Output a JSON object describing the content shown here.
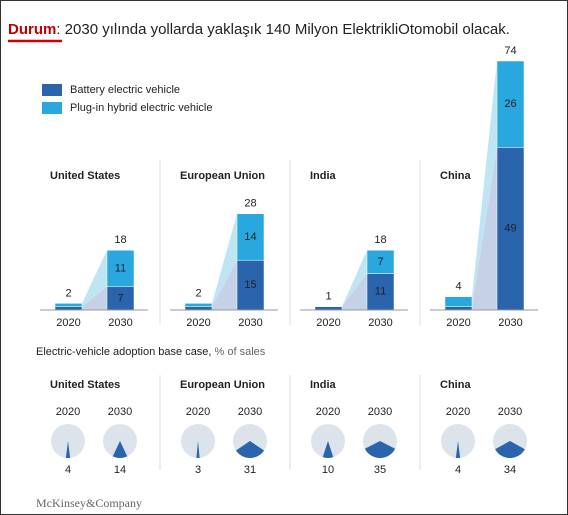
{
  "header": {
    "label": "Durum",
    "text": ": 2030 yılında yollarda yaklaşık 140 Milyon ElektrikliOtomobil olacak."
  },
  "chart_data": {
    "type": "bar",
    "stacked": true,
    "legend": [
      {
        "name": "Battery electric vehicle",
        "color": "#2a64ad"
      },
      {
        "name": "Plug-in hybrid electric vehicle",
        "color": "#29a8df"
      }
    ],
    "panels": [
      {
        "title": "United States",
        "categories": [
          "2020",
          "2030"
        ],
        "series": [
          {
            "values": [
              1,
              7
            ]
          },
          {
            "values": [
              1,
              11
            ]
          }
        ],
        "totals": [
          2,
          18
        ]
      },
      {
        "title": "European Union",
        "categories": [
          "2020",
          "2030"
        ],
        "series": [
          {
            "values": [
              1,
              15
            ]
          },
          {
            "values": [
              1,
              14
            ]
          }
        ],
        "totals": [
          2,
          28
        ]
      },
      {
        "title": "India",
        "categories": [
          "2020",
          "2030"
        ],
        "series": [
          {
            "values": [
              1,
              11
            ]
          },
          {
            "values": [
              0,
              7
            ]
          }
        ],
        "totals": [
          1,
          18
        ]
      },
      {
        "title": "China",
        "categories": [
          "2020",
          "2030"
        ],
        "series": [
          {
            "values": [
              1,
              49
            ]
          },
          {
            "values": [
              3,
              26
            ]
          }
        ],
        "totals": [
          4,
          74
        ]
      }
    ]
  },
  "pie_chart": {
    "type": "pie",
    "title": "Electric-vehicle adoption base case,",
    "unit": "% of sales",
    "color": "#2a64ad",
    "panels": [
      {
        "title": "United States",
        "categories": [
          "2020",
          "2030"
        ],
        "values": [
          4,
          14
        ]
      },
      {
        "title": "European Union",
        "categories": [
          "2020",
          "2030"
        ],
        "values": [
          3,
          31
        ]
      },
      {
        "title": "India",
        "categories": [
          "2020",
          "2030"
        ],
        "values": [
          10,
          35
        ]
      },
      {
        "title": "China",
        "categories": [
          "2020",
          "2030"
        ],
        "values": [
          4,
          34
        ]
      }
    ]
  },
  "footer": "McKinsey&Company"
}
